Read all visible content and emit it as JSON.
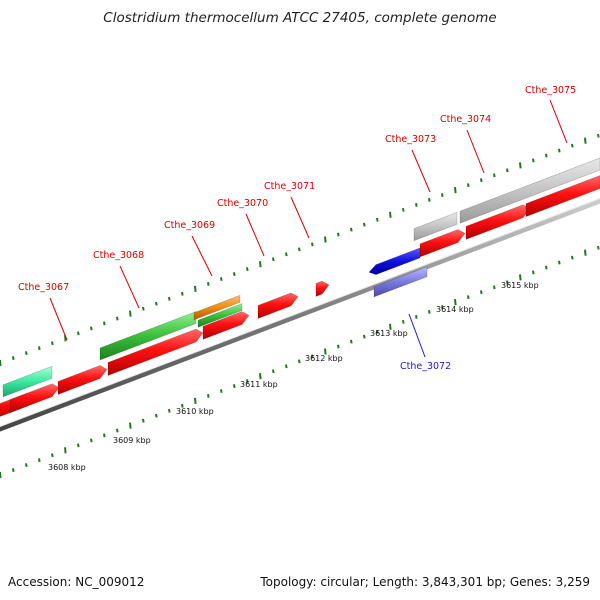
{
  "title": "Clostridium thermocellum ATCC 27405, complete genome",
  "footer": {
    "accession": "Accession: NC_009012",
    "topology": "Topology: circular; Length: 3,843,301 bp; Genes: 3,259"
  },
  "colors": {
    "backbone": "#8a8a8a",
    "tick": "#1f7a1f",
    "cds": "#ff1a1a",
    "label_plus": "#d40000",
    "label_minus": "#1a1acc"
  },
  "kbp_labels": [
    "3608 kbp",
    "3609 kbp",
    "3610 kbp",
    "3611 kbp",
    "3612 kbp",
    "3613 kbp",
    "3614 kbp",
    "3615 kbp"
  ],
  "gene_labels": [
    {
      "text": "Cthe_3067",
      "strand": "plus"
    },
    {
      "text": "Cthe_3068",
      "strand": "plus"
    },
    {
      "text": "Cthe_3069",
      "strand": "plus"
    },
    {
      "text": "Cthe_3070",
      "strand": "plus"
    },
    {
      "text": "Cthe_3071",
      "strand": "plus"
    },
    {
      "text": "Cthe_3072",
      "strand": "minus"
    },
    {
      "text": "Cthe_3073",
      "strand": "plus"
    },
    {
      "text": "Cthe_3074",
      "strand": "plus"
    },
    {
      "text": "Cthe_3075",
      "strand": "plus"
    }
  ]
}
